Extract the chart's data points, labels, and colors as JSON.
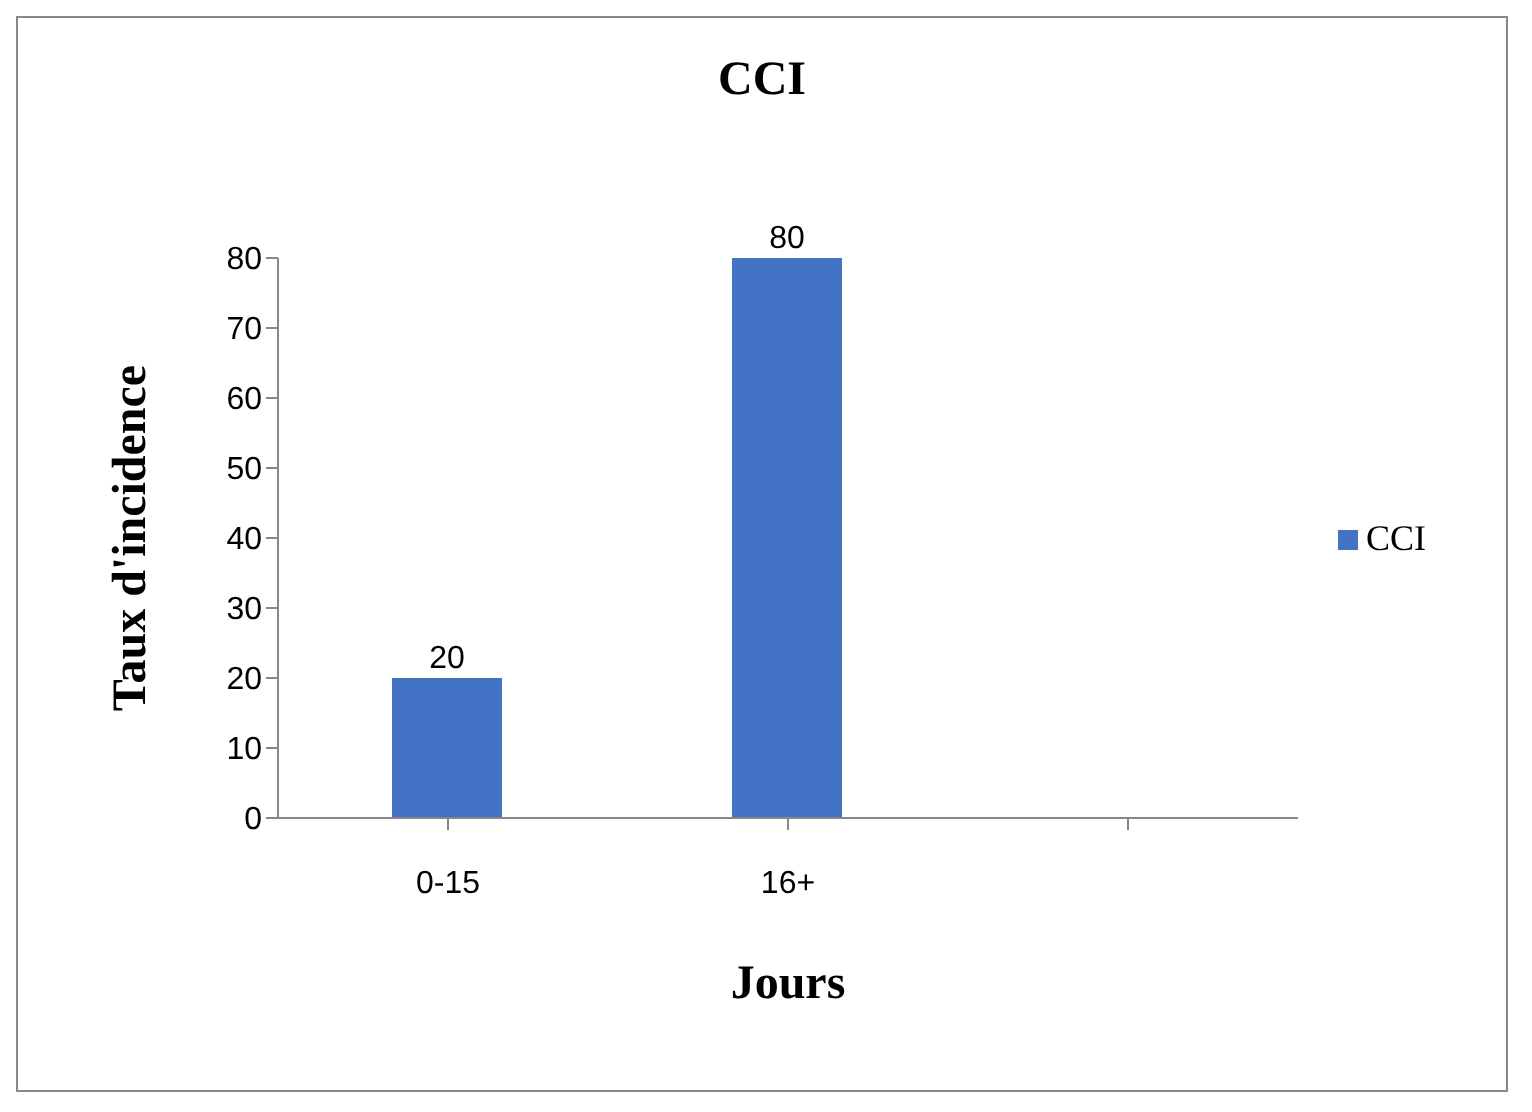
{
  "chart_data": {
    "type": "bar",
    "title": "CCI",
    "xlabel": "Jours",
    "ylabel": "Taux d'incidence",
    "categories": [
      "0-15",
      "16+",
      null
    ],
    "series": [
      {
        "name": "CCI",
        "color": "#4472c4",
        "values": [
          20,
          80,
          null
        ]
      }
    ],
    "ylim": [
      0,
      80
    ],
    "yticks": [
      0,
      10,
      20,
      30,
      40,
      50,
      60,
      70,
      80
    ],
    "grid": false,
    "legend": "right",
    "data_labels": true
  }
}
